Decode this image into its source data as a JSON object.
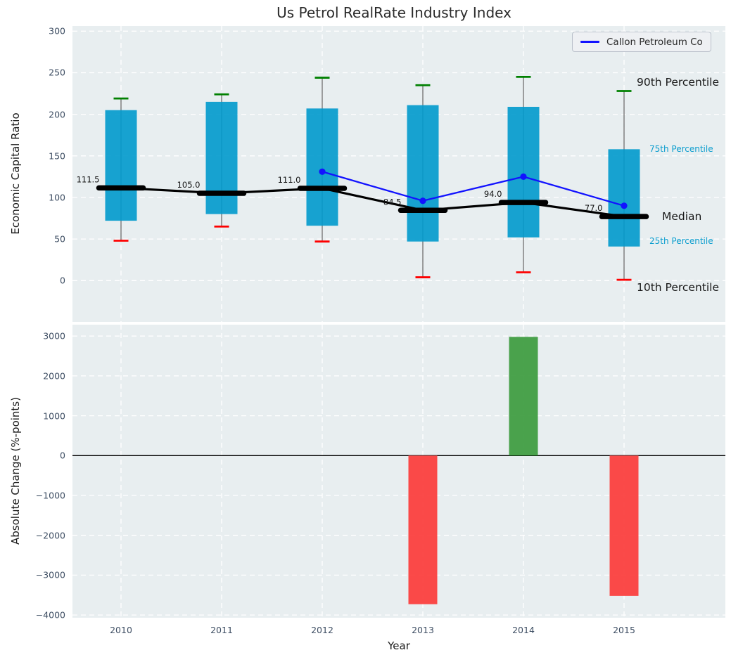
{
  "title": "Us Petrol RealRate Industry Index",
  "background": {
    "figure": "#ffffff",
    "panel": "#e8eef0",
    "gridline": "#ffffff"
  },
  "axis": {
    "tick_color": "#3e4e63"
  },
  "chart_data": [
    {
      "type": "boxplot",
      "panel": "top",
      "title": "Us Petrol RealRate Industry Index",
      "ylabel": "Economic Capital Ratio",
      "xlabel": "Year",
      "ylim": [
        -50,
        306
      ],
      "grid": true,
      "legend_position": "upper right",
      "legend_label": "Callon Petroleum Co",
      "yticks": [
        "0",
        "50",
        "100",
        "150",
        "200",
        "250",
        "300"
      ],
      "ytick_values": [
        0,
        50,
        100,
        150,
        200,
        250,
        300
      ],
      "categories": [
        "2010",
        "2011",
        "2012",
        "2013",
        "2014",
        "2015"
      ],
      "series": [
        {
          "name": "90th Percentile",
          "values": [
            219,
            224,
            244,
            235,
            245,
            228
          ]
        },
        {
          "name": "75th Percentile",
          "values": [
            205,
            215,
            207,
            211,
            209,
            158
          ]
        },
        {
          "name": "Median",
          "values": [
            111.5,
            105.0,
            111.0,
            84.5,
            94.0,
            77.0
          ]
        },
        {
          "name": "25th Percentile",
          "values": [
            72,
            80,
            66,
            47,
            52,
            41
          ]
        },
        {
          "name": "10th Percentile",
          "values": [
            48,
            65,
            47,
            4,
            10,
            1
          ]
        },
        {
          "name": "Callon Petroleum Co",
          "x": [
            "2012",
            "2013",
            "2014",
            "2015"
          ],
          "values": [
            131,
            96,
            125,
            90
          ]
        }
      ],
      "median_labels": [
        "111.5",
        "105.0",
        "111.0",
        "84.5",
        "94.0",
        "77.0"
      ],
      "annotations": [
        {
          "text": "90th Percentile",
          "size": "large",
          "anchor_value": 228
        },
        {
          "text": "75th Percentile",
          "size": "small",
          "anchor_value": 158
        },
        {
          "text": "Median",
          "size": "large",
          "anchor_value": 77
        },
        {
          "text": "25th Percentile",
          "size": "small",
          "anchor_value": 41
        },
        {
          "text": "10th Percentile",
          "size": "large",
          "anchor_value": 1
        }
      ],
      "colors": {
        "box": "#0099cc",
        "whisker": "#6e6e6e",
        "p90_cap": "#008000",
        "p10_cap": "#fe0000",
        "median_line": "#000000",
        "company_line": "#1212ff"
      }
    },
    {
      "type": "bar",
      "panel": "bottom",
      "ylabel": "Absolute Change (%-points)",
      "xlabel": "Year",
      "ylim": [
        -4090,
        3290
      ],
      "grid": true,
      "yticks": [
        "3000",
        "2000",
        "1000",
        "0",
        "−1000",
        "−2000",
        "−3000",
        "−4000"
      ],
      "ytick_values": [
        3000,
        2000,
        1000,
        0,
        -1000,
        -2000,
        -3000,
        -4000
      ],
      "categories": [
        "2010",
        "2011",
        "2012",
        "2013",
        "2014",
        "2015"
      ],
      "values": [
        null,
        null,
        null,
        -3730,
        2980,
        -3520
      ],
      "colors": {
        "positive": "#3d9c40",
        "negative": "#fb3c3b",
        "zero_line": "#000000"
      }
    }
  ]
}
